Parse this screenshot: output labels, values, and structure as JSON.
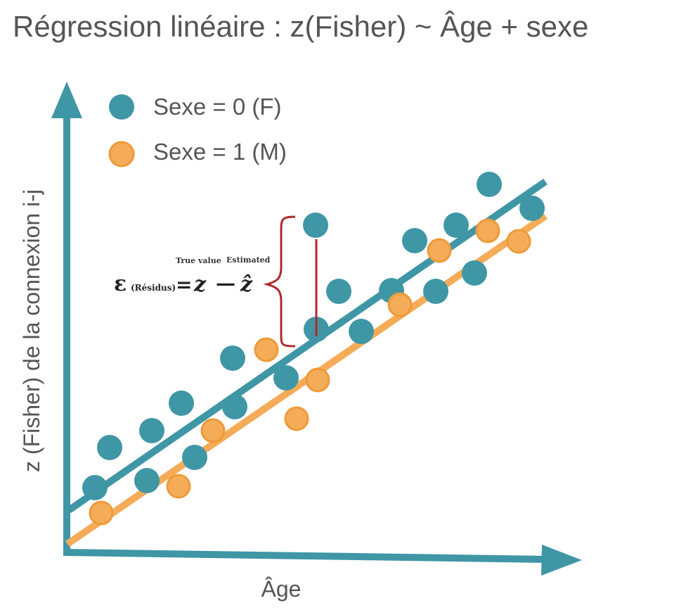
{
  "title": "Régression linéaire : z(Fisher) ~ Âge + sexe",
  "colors": {
    "teal": "#3f96a5",
    "orange": "#f5ac58",
    "orange_stroke": "#ee9a38",
    "residual_red": "#b0282b",
    "axis": "#3f96a5"
  },
  "legend": {
    "female": "Sexe = 0 (F)",
    "male": "Sexe = 1 (M)"
  },
  "axes": {
    "x_label": "Âge",
    "y_label": "z (Fisher) de la connexion i-j"
  },
  "equation": {
    "epsilon": "ε",
    "residus": "(Résidus)",
    "equals": "=",
    "z": "z",
    "minus": "—",
    "z_hat": "ẑ",
    "true_value": "True value",
    "estimated": "Estimated"
  },
  "chart_data": {
    "type": "scatter",
    "xlabel": "Âge",
    "ylabel": "z (Fisher) de la connexion i-j",
    "series": [
      {
        "name": "Sexe = 0 (F)",
        "color": "#3f96a5",
        "points": [
          [
            135,
            693
          ],
          [
            156,
            636
          ],
          [
            209,
            683
          ],
          [
            216,
            612
          ],
          [
            258,
            573
          ],
          [
            277,
            650
          ],
          [
            331,
            509
          ],
          [
            334,
            578
          ],
          [
            407,
            537
          ],
          [
            449,
            320
          ],
          [
            450,
            468
          ],
          [
            482,
            414
          ],
          [
            514,
            471
          ],
          [
            557,
            413
          ],
          [
            590,
            342
          ],
          [
            620,
            414
          ],
          [
            649,
            320
          ],
          [
            675,
            388
          ],
          [
            696,
            262
          ],
          [
            757,
            296
          ]
        ],
        "fit": [
          [
            98,
            725
          ],
          [
            776,
            258
          ]
        ]
      },
      {
        "name": "Sexe = 1 (M)",
        "color": "#f5ac58",
        "points": [
          [
            144,
            729
          ],
          [
            254,
            691
          ],
          [
            303,
            612
          ],
          [
            379,
            497
          ],
          [
            422,
            595
          ],
          [
            452,
            540
          ],
          [
            569,
            433
          ],
          [
            625,
            356
          ],
          [
            694,
            328
          ],
          [
            738,
            343
          ]
        ],
        "fit": [
          [
            96,
            773
          ],
          [
            776,
            307
          ]
        ]
      }
    ],
    "residual": {
      "from": [
        450,
        340
      ],
      "to": [
        450,
        478
      ]
    }
  }
}
